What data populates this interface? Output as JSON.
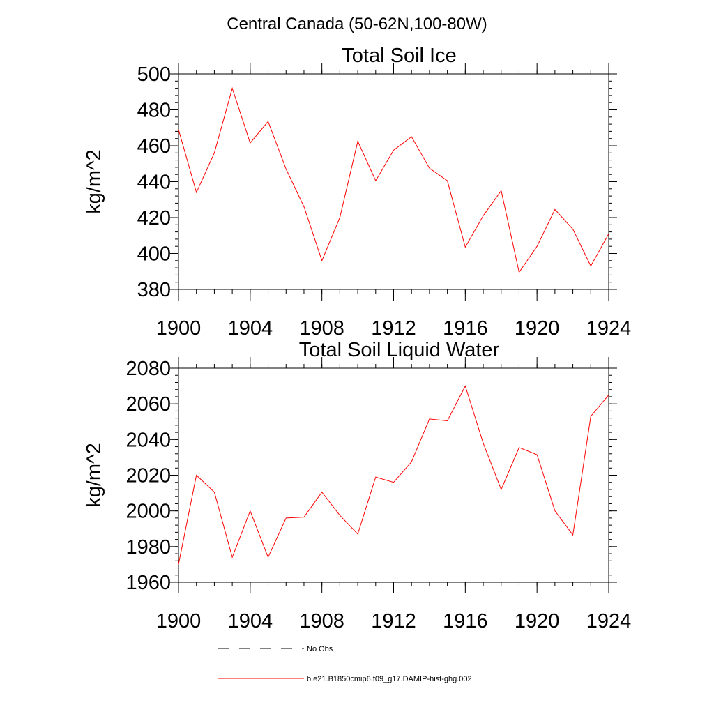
{
  "figure": {
    "title": "Central Canada (50-62N,100-80W)"
  },
  "legend": {
    "entries": [
      {
        "label": "No Obs",
        "color": "#000000",
        "dash": "dashed"
      },
      {
        "label": "b.e21.B1850cmip6.f09_g17.DAMIP-hist-ghg.002",
        "color": "#ff0000",
        "dash": "solid"
      }
    ]
  },
  "chart_data": [
    {
      "type": "line",
      "title": "Total Soil Ice",
      "xlabel": "",
      "ylabel": "kg/m^2",
      "xlim": [
        1900,
        1924
      ],
      "ylim": [
        380,
        500
      ],
      "xticks": [
        1900,
        1904,
        1908,
        1912,
        1916,
        1920,
        1924
      ],
      "xtick_labels": [
        "1900",
        "1904",
        "1908",
        "1912",
        "1916",
        "1920",
        "1924"
      ],
      "yticks": [
        380,
        400,
        420,
        440,
        460,
        480,
        500
      ],
      "ytick_labels": [
        "380",
        "400",
        "420",
        "440",
        "460",
        "480",
        "500"
      ],
      "grid": false,
      "series": [
        {
          "color": "#ff0000",
          "x": [
            1900,
            1901,
            1902,
            1903,
            1904,
            1905,
            1906,
            1907,
            1908,
            1909,
            1910,
            1911,
            1912,
            1913,
            1914,
            1915,
            1916,
            1917,
            1918,
            1919,
            1920,
            1921,
            1922,
            1923,
            1924
          ],
          "y": [
            469,
            434,
            456,
            492,
            461.5,
            473.5,
            447,
            426,
            396,
            420,
            462.5,
            440.5,
            457.5,
            465,
            447.5,
            440.5,
            403.5,
            421,
            435,
            389.5,
            404,
            424.5,
            413.5,
            393,
            411
          ]
        }
      ]
    },
    {
      "type": "line",
      "title": "Total Soil Liquid Water",
      "xlabel": "",
      "ylabel": "kg/m^2",
      "xlim": [
        1900,
        1924
      ],
      "ylim": [
        1960,
        2080
      ],
      "xticks": [
        1900,
        1904,
        1908,
        1912,
        1916,
        1920,
        1924
      ],
      "xtick_labels": [
        "1900",
        "1904",
        "1908",
        "1912",
        "1916",
        "1920",
        "1924"
      ],
      "yticks": [
        1960,
        1980,
        2000,
        2020,
        2040,
        2060,
        2080
      ],
      "ytick_labels": [
        "1960",
        "1980",
        "2000",
        "2020",
        "2040",
        "2060",
        "2080"
      ],
      "grid": false,
      "series": [
        {
          "color": "#ff0000",
          "x": [
            1900,
            1901,
            1902,
            1903,
            1904,
            1905,
            1906,
            1907,
            1908,
            1909,
            1910,
            1911,
            1912,
            1913,
            1914,
            1915,
            1916,
            1917,
            1918,
            1919,
            1920,
            1921,
            1922,
            1923,
            1924
          ],
          "y": [
            1970,
            2020,
            2010.5,
            1974,
            2000,
            1974,
            1996,
            1996.5,
            2010.5,
            1997.5,
            1987,
            2019,
            2016,
            2027.5,
            2051.5,
            2050.5,
            2070,
            2038,
            2012,
            2035.5,
            2031.5,
            2000,
            1986.5,
            2053,
            2065
          ]
        }
      ]
    }
  ]
}
